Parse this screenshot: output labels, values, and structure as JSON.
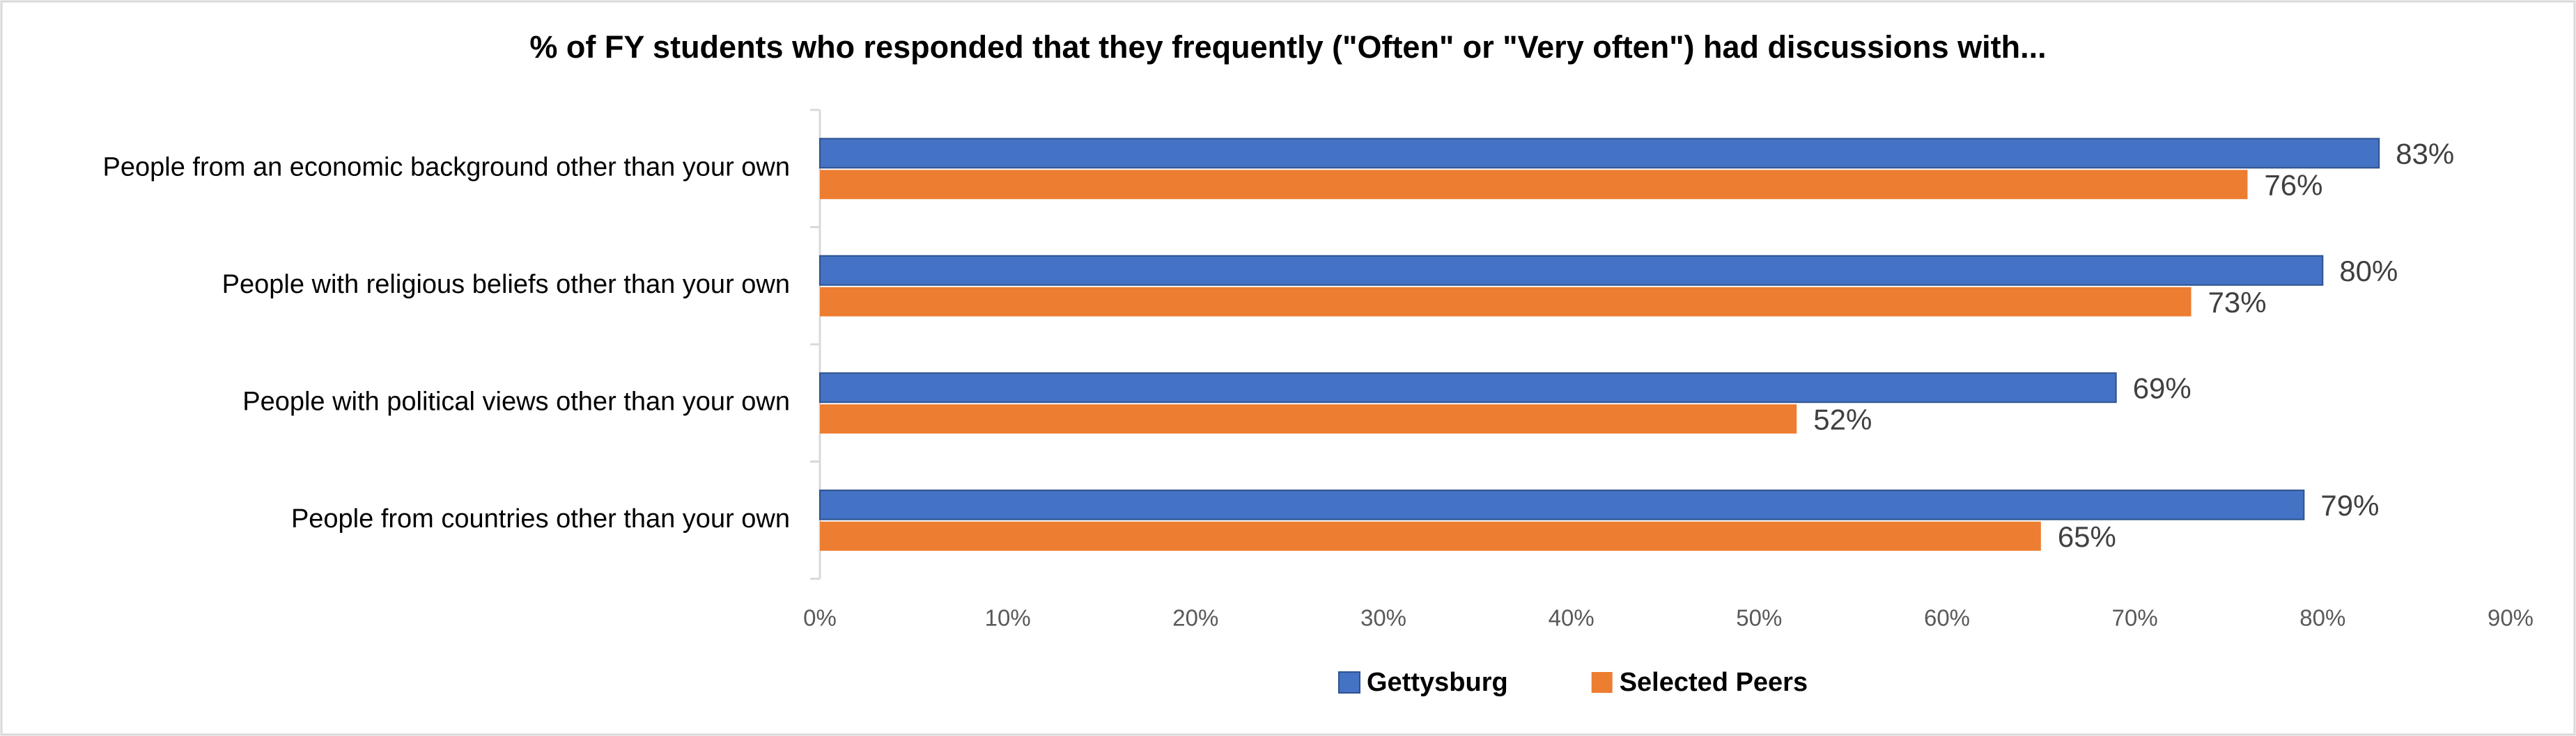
{
  "chart_data": {
    "type": "bar",
    "orientation": "horizontal",
    "title": "% of FY students who responded that they frequently (\"Often\" or \"Very often\") had discussions with...",
    "categories": [
      "People from an economic background other than your own",
      "People with religious beliefs other than your own",
      "People with political views other than your own",
      "People from countries other than your own"
    ],
    "series": [
      {
        "name": "Gettysburg",
        "color": "#4472c4",
        "values": [
          83,
          80,
          69,
          79
        ],
        "value_labels": [
          "83%",
          "80%",
          "69%",
          "79%"
        ]
      },
      {
        "name": "Selected Peers",
        "color": "#ed7d31",
        "values": [
          76,
          73,
          52,
          65
        ],
        "value_labels": [
          "76%",
          "73%",
          "52%",
          "65%"
        ]
      }
    ],
    "xlim": [
      0,
      90
    ],
    "xticks": [
      {
        "value": 0,
        "label": "0%"
      },
      {
        "value": 10,
        "label": "10%"
      },
      {
        "value": 20,
        "label": "20%"
      },
      {
        "value": 30,
        "label": "30%"
      },
      {
        "value": 40,
        "label": "40%"
      },
      {
        "value": 50,
        "label": "50%"
      },
      {
        "value": 60,
        "label": "60%"
      },
      {
        "value": 70,
        "label": "70%"
      },
      {
        "value": 80,
        "label": "80%"
      },
      {
        "value": 90,
        "label": "90%"
      }
    ],
    "grid": false,
    "legend": "bottom"
  }
}
